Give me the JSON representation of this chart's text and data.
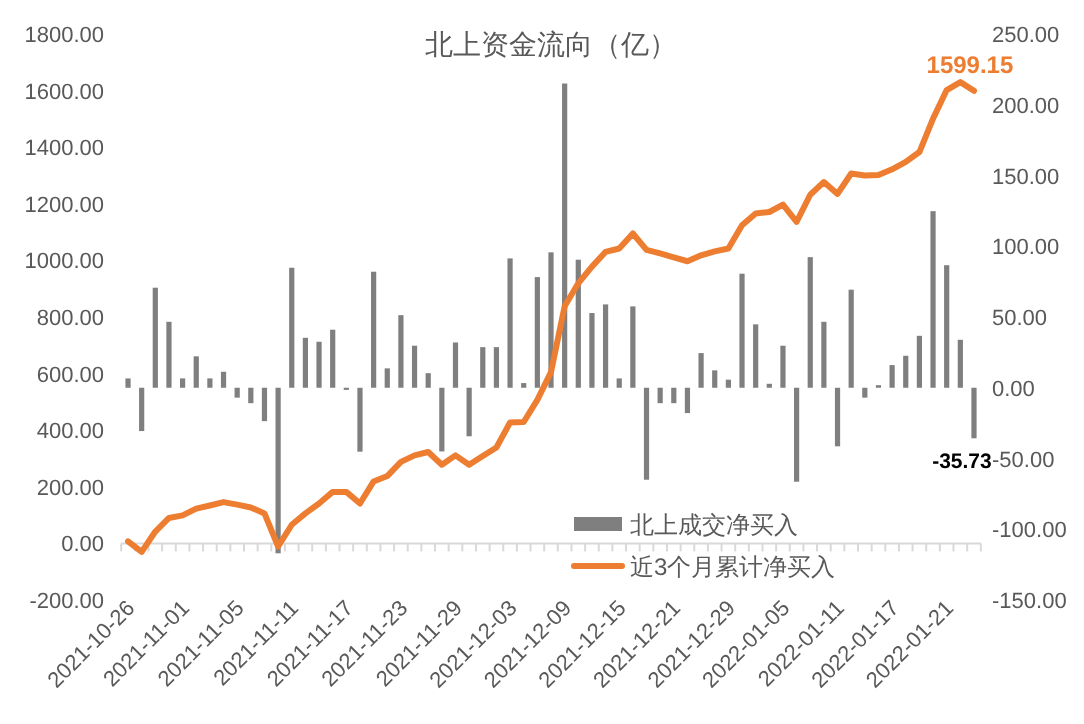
{
  "chart_data": {
    "type": "bar",
    "title": "北上资金流向（亿）",
    "categories": [
      "2021-10-26",
      null,
      null,
      null,
      "2021-11-01",
      null,
      null,
      null,
      "2021-11-05",
      null,
      null,
      null,
      "2021-11-11",
      null,
      null,
      null,
      "2021-11-17",
      null,
      null,
      null,
      "2021-11-23",
      null,
      null,
      null,
      "2021-11-29",
      null,
      null,
      null,
      "2021-12-03",
      null,
      null,
      null,
      "2021-12-09",
      null,
      null,
      null,
      "2021-12-15",
      null,
      null,
      null,
      "2021-12-21",
      null,
      null,
      null,
      "2021-12-29",
      null,
      null,
      null,
      "2022-01-05",
      null,
      null,
      null,
      "2022-01-11",
      null,
      null,
      null,
      "2022-01-17",
      null,
      null,
      null,
      "2022-01-21",
      null,
      null
    ],
    "series": [
      {
        "name": "北上成交净买入",
        "axis": "y2",
        "color": "#7f7f7f",
        "values": [
          6.6,
          -30.6,
          70.7,
          46.6,
          6.6,
          22.2,
          6.6,
          11.3,
          -7,
          -10.9,
          -23.6,
          -117,
          84.8,
          35.3,
          32.5,
          41,
          -1.5,
          -45.2,
          82,
          13.7,
          51.3,
          29.7,
          10.3,
          -45,
          32,
          -34.3,
          28.7,
          28.7,
          91.4,
          3.3,
          78.2,
          95.7,
          215,
          90.5,
          52.8,
          58.9,
          6.6,
          57.5,
          -65,
          -10.9,
          -10.9,
          -17.9,
          24.5,
          12.3,
          5.7,
          80.6,
          44.8,
          2.8,
          29.7,
          -66.4,
          92.3,
          46.6,
          -41.4,
          69.3,
          -7,
          1.8,
          16,
          22.6,
          36.7,
          124.8,
          86.6,
          33.9,
          -35.73
        ],
        "value_labels": [
          null,
          null,
          null,
          null,
          null,
          null,
          null,
          null,
          null,
          null,
          null,
          null,
          null,
          null,
          null,
          null,
          null,
          null,
          null,
          null,
          null,
          null,
          null,
          null,
          null,
          null,
          null,
          null,
          null,
          null,
          null,
          null,
          null,
          null,
          null,
          null,
          null,
          null,
          null,
          null,
          null,
          null,
          null,
          null,
          null,
          null,
          null,
          null,
          null,
          null,
          null,
          null,
          null,
          null,
          null,
          null,
          null,
          null,
          null,
          null,
          null,
          null,
          "-35.73"
        ]
      },
      {
        "name": "近3个月累计净买入",
        "type": "line",
        "color": "#ed7d31",
        "values": [
          7,
          -30,
          42,
          90,
          99,
          123,
          134,
          146,
          137,
          127,
          106,
          -11,
          66,
          106,
          141,
          182,
          182,
          141,
          219,
          238,
          288,
          311,
          323,
          278,
          311,
          278,
          309,
          339,
          427,
          429,
          507,
          605,
          838,
          919,
          978,
          1030,
          1042,
          1095,
          1037,
          1025,
          1011,
          997,
          1018,
          1032,
          1042,
          1124,
          1166,
          1171,
          1197,
          1136,
          1232,
          1277,
          1235,
          1307,
          1300,
          1302,
          1322,
          1348,
          1383,
          1501,
          1602,
          1630,
          1599.15
        ],
        "value_labels": [
          null,
          null,
          null,
          null,
          null,
          null,
          null,
          null,
          null,
          null,
          null,
          null,
          null,
          null,
          null,
          null,
          null,
          null,
          null,
          null,
          null,
          null,
          null,
          null,
          null,
          null,
          null,
          null,
          null,
          null,
          null,
          null,
          null,
          null,
          null,
          null,
          null,
          null,
          null,
          null,
          null,
          null,
          null,
          null,
          null,
          null,
          null,
          null,
          null,
          null,
          null,
          null,
          null,
          null,
          null,
          null,
          null,
          null,
          null,
          null,
          null,
          null,
          "1599.15"
        ]
      }
    ],
    "ylim": [
      -200,
      1800
    ],
    "yticks": [
      {
        "value": -200,
        "label": "-200.00"
      },
      {
        "value": 0,
        "label": "0.00"
      },
      {
        "value": 200,
        "label": "200.00"
      },
      {
        "value": 400,
        "label": "400.00"
      },
      {
        "value": 600,
        "label": "600.00"
      },
      {
        "value": 800,
        "label": "800.00"
      },
      {
        "value": 1000,
        "label": "1000.00"
      },
      {
        "value": 1200,
        "label": "1200.00"
      },
      {
        "value": 1400,
        "label": "1400.00"
      },
      {
        "value": 1600,
        "label": "1600.00"
      },
      {
        "value": 1800,
        "label": "1800.00"
      }
    ],
    "y2lim": [
      -150,
      250
    ],
    "y2ticks": [
      {
        "value": -150,
        "label": "-150.00"
      },
      {
        "value": -100,
        "label": "-100.00"
      },
      {
        "value": -50,
        "label": "-50.00"
      },
      {
        "value": 0,
        "label": "0.00"
      },
      {
        "value": 50,
        "label": "50.00"
      },
      {
        "value": 100,
        "label": "100.00"
      },
      {
        "value": 150,
        "label": "150.00"
      },
      {
        "value": 200,
        "label": "200.00"
      },
      {
        "value": 250,
        "label": "250.00"
      }
    ],
    "legend": "bottom right",
    "grid": false
  }
}
